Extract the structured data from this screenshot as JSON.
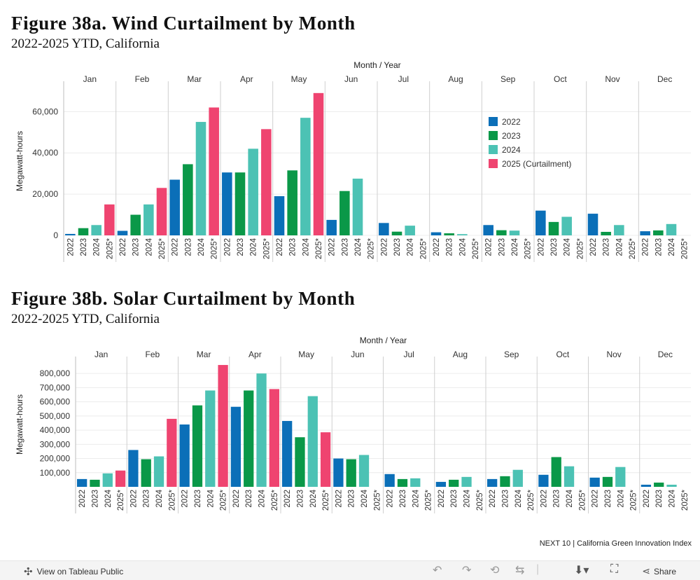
{
  "figures": [
    {
      "title": "Figure 38a. Wind Curtailment by Month",
      "subtitle": "2022-2025 YTD, California"
    },
    {
      "title": "Figure 38b. Solar Curtailment by Month",
      "subtitle": "2022-2025 YTD, California"
    }
  ],
  "footer": {
    "credit": "NEXT 10 | California Green Innovation Index",
    "view_label": "View on Tableau Public",
    "share_label": "Share"
  },
  "colors": {
    "2022": "#0b6fb8",
    "2023": "#0a9848",
    "2024": "#4cc2b4",
    "2025": "#ef4470",
    "gridline": "#ececec",
    "divider": "#cfcfcf"
  },
  "chart_data": [
    {
      "type": "bar",
      "column_header": "Month / Year",
      "ylabel": "Megawatt-hours",
      "ylim": [
        0,
        72000
      ],
      "yticks": [
        0,
        20000,
        40000,
        60000
      ],
      "ytick_labels": [
        "0",
        "20,000",
        "40,000",
        "60,000"
      ],
      "months": [
        "Jan",
        "Feb",
        "Mar",
        "Apr",
        "May",
        "Jun",
        "Jul",
        "Aug",
        "Sep",
        "Oct",
        "Nov",
        "Dec"
      ],
      "year_labels": [
        "2022",
        "2023",
        "2024",
        "2025*"
      ],
      "legend": {
        "placement": "right-inside",
        "entries": [
          "2022",
          "2023",
          "2024",
          "2025 (Curtailment)"
        ]
      },
      "series": [
        {
          "key": "2022",
          "values": [
            700,
            2200,
            27000,
            30500,
            19000,
            7500,
            6000,
            1500,
            5000,
            12000,
            10500,
            2000
          ]
        },
        {
          "key": "2023",
          "values": [
            3500,
            10000,
            34500,
            30500,
            31500,
            21500,
            1800,
            1000,
            2500,
            6500,
            1700,
            2400
          ]
        },
        {
          "key": "2024",
          "values": [
            5000,
            15000,
            55000,
            42000,
            57000,
            27500,
            4700,
            600,
            2300,
            9000,
            5000,
            5500
          ]
        },
        {
          "key": "2025",
          "values": [
            15000,
            23000,
            62000,
            51500,
            69000,
            null,
            null,
            null,
            null,
            null,
            null,
            null
          ]
        }
      ]
    },
    {
      "type": "bar",
      "column_header": "Month / Year",
      "ylabel": "Megawatt-hours",
      "ylim": [
        0,
        880000
      ],
      "yticks": [
        100000,
        200000,
        300000,
        400000,
        500000,
        600000,
        700000,
        800000
      ],
      "ytick_labels": [
        "100,000",
        "200,000",
        "300,000",
        "400,000",
        "500,000",
        "600,000",
        "700,000",
        "800,000"
      ],
      "months": [
        "Jan",
        "Feb",
        "Mar",
        "Apr",
        "May",
        "Jun",
        "Jul",
        "Aug",
        "Sep",
        "Oct",
        "Nov",
        "Dec"
      ],
      "year_labels": [
        "2022",
        "2023",
        "2024",
        "2025*"
      ],
      "series": [
        {
          "key": "2022",
          "values": [
            55000,
            260000,
            440000,
            565000,
            465000,
            200000,
            90000,
            35000,
            55000,
            85000,
            65000,
            15000
          ]
        },
        {
          "key": "2023",
          "values": [
            50000,
            195000,
            575000,
            680000,
            350000,
            195000,
            55000,
            50000,
            75000,
            210000,
            70000,
            30000
          ]
        },
        {
          "key": "2024",
          "values": [
            95000,
            215000,
            680000,
            800000,
            640000,
            225000,
            60000,
            70000,
            120000,
            145000,
            140000,
            15000
          ]
        },
        {
          "key": "2025",
          "values": [
            115000,
            480000,
            860000,
            690000,
            385000,
            null,
            null,
            null,
            null,
            null,
            null,
            null
          ]
        }
      ]
    }
  ]
}
